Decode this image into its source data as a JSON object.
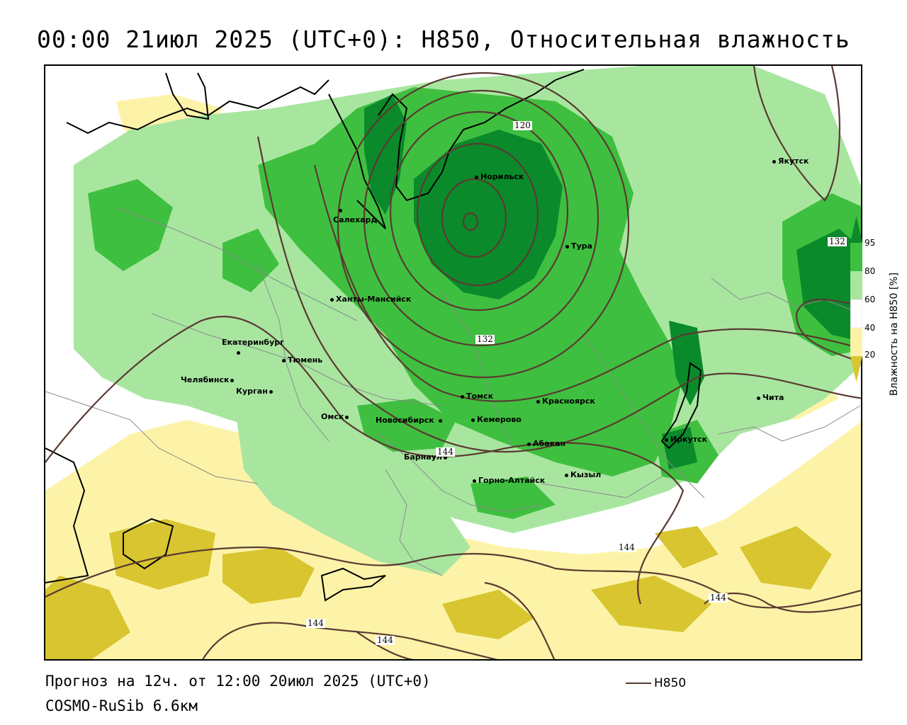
{
  "title": "00:00 21июл 2025 (UTC+0): H850, Относительная влажность",
  "footer": {
    "forecast": "Прогноз на 12ч. от 12:00 20июл 2025 (UTC+0)",
    "model": "COSMO-RuSib 6.6км"
  },
  "legend": {
    "label": "H850",
    "color": "#5a3a32"
  },
  "colorbar": {
    "title": "Влажность на H850 [%]",
    "ticks": [
      "95",
      "80",
      "60",
      "40",
      "20"
    ],
    "colors": {
      "gt95": "#0a8a2a",
      "80_95": "#3fbf3f",
      "60_80": "#a8e6a0",
      "40_60": "#ffffff",
      "20_40": "#fdf3a8",
      "lt20": "#d8c530"
    }
  },
  "cities": [
    {
      "name": "Норильск"
    },
    {
      "name": "Салехард"
    },
    {
      "name": "Тура"
    },
    {
      "name": "Якутск"
    },
    {
      "name": "Ханты-Мансийск"
    },
    {
      "name": "Екатеринбург"
    },
    {
      "name": "Тюмень"
    },
    {
      "name": "Челябинск"
    },
    {
      "name": "Курган"
    },
    {
      "name": "Омск"
    },
    {
      "name": "Новосибирск"
    },
    {
      "name": "Томск"
    },
    {
      "name": "Кемерово"
    },
    {
      "name": "Красноярск"
    },
    {
      "name": "Барнаул"
    },
    {
      "name": "Абакан"
    },
    {
      "name": "Горно-Алтайск"
    },
    {
      "name": "Кызыл"
    },
    {
      "name": "Иркутск"
    },
    {
      "name": "Чита"
    }
  ],
  "isolines": [
    "120",
    "132",
    "144",
    "132",
    "144",
    "144",
    "144",
    "144"
  ]
}
